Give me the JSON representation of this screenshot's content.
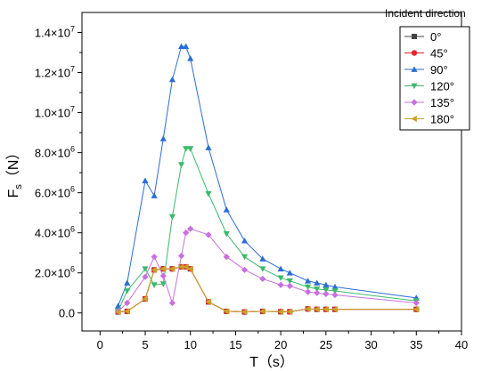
{
  "chart_data": {
    "type": "line",
    "xlabel_main": "T",
    "xlabel_unit": "（s）",
    "ylabel_main": "F",
    "ylabel_sub": "s",
    "ylabel_unit": "（N）",
    "legend_title": "Incident  direction",
    "legend_placement": "top-right",
    "grid": false,
    "xlim": [
      -2,
      40
    ],
    "ylim": [
      -900000.0,
      15000000.0
    ],
    "x_ticks": [
      0,
      5,
      10,
      15,
      20,
      25,
      30,
      35,
      40
    ],
    "x_tick_labels": [
      "0",
      "5",
      "10",
      "15",
      "20",
      "25",
      "30",
      "35",
      "40"
    ],
    "y_ticks": [
      0,
      2000000,
      4000000,
      6000000,
      8000000,
      10000000,
      12000000,
      14000000
    ],
    "y_tick_labels": [
      {
        "base": "0.0",
        "exp": ""
      },
      {
        "base": "2.0×10",
        "exp": "6"
      },
      {
        "base": "4.0×10",
        "exp": "6"
      },
      {
        "base": "6.0×10",
        "exp": "6"
      },
      {
        "base": "8.0×10",
        "exp": "6"
      },
      {
        "base": "1.0×10",
        "exp": "7"
      },
      {
        "base": "1.2×10",
        "exp": "7"
      },
      {
        "base": "1.4×10",
        "exp": "7"
      }
    ],
    "series": [
      {
        "name": "0°",
        "color": "#444444",
        "marker": "square",
        "x": [
          2,
          3,
          5,
          6,
          7,
          8,
          9,
          9.5,
          10,
          12,
          14,
          16,
          18,
          20,
          21,
          23,
          24,
          25,
          26,
          35
        ],
        "y": [
          50000.0,
          80000.0,
          700000.0,
          2150000.0,
          2200000.0,
          2200000.0,
          2300000.0,
          2300000.0,
          2200000.0,
          550000.0,
          80000.0,
          50000.0,
          80000.0,
          60000.0,
          60000.0,
          200000.0,
          180000.0,
          180000.0,
          180000.0,
          180000.0
        ]
      },
      {
        "name": "45°",
        "color": "#e8242a",
        "marker": "circle",
        "x": [
          2,
          3,
          5,
          6,
          7,
          8,
          9,
          9.5,
          10,
          12,
          14,
          16,
          18,
          20,
          21,
          23,
          24,
          25,
          26,
          35
        ],
        "y": [
          50000.0,
          80000.0,
          700000.0,
          2150000.0,
          2200000.0,
          2200000.0,
          2300000.0,
          2300000.0,
          2200000.0,
          550000.0,
          80000.0,
          50000.0,
          80000.0,
          60000.0,
          60000.0,
          200000.0,
          180000.0,
          180000.0,
          180000.0,
          180000.0
        ]
      },
      {
        "name": "90°",
        "color": "#2b6dd6",
        "marker": "triangle-up",
        "x": [
          2,
          3,
          5,
          6,
          7,
          8,
          9,
          9.5,
          10,
          12,
          14,
          16,
          18,
          20,
          21,
          23,
          24,
          25,
          26,
          35
        ],
        "y": [
          350000.0,
          1500000.0,
          6600000.0,
          5850000.0,
          8700000.0,
          11650000.0,
          13300000.0,
          13300000.0,
          12700000.0,
          8250000.0,
          5150000.0,
          3600000.0,
          2700000.0,
          2200000.0,
          2000000.0,
          1600000.0,
          1500000.0,
          1400000.0,
          1300000.0,
          750000.0
        ]
      },
      {
        "name": "120°",
        "color": "#3cb96a",
        "marker": "triangle-down",
        "x": [
          2,
          3,
          5,
          6,
          7,
          8,
          9,
          9.5,
          10,
          12,
          14,
          16,
          18,
          20,
          21,
          23,
          24,
          25,
          26,
          35
        ],
        "y": [
          100000.0,
          1100000.0,
          2200000.0,
          1400000.0,
          1450000.0,
          4800000.0,
          7400000.0,
          8200000.0,
          8200000.0,
          5950000.0,
          3950000.0,
          2800000.0,
          2200000.0,
          1750000.0,
          1600000.0,
          1300000.0,
          1200000.0,
          1150000.0,
          1100000.0,
          600000.0
        ]
      },
      {
        "name": "135°",
        "color": "#c86fe0",
        "marker": "diamond",
        "x": [
          2,
          3,
          5,
          6,
          7,
          8,
          9,
          9.5,
          10,
          12,
          14,
          16,
          18,
          20,
          21,
          23,
          24,
          25,
          26,
          35
        ],
        "y": [
          80000.0,
          500000.0,
          1800000.0,
          2800000.0,
          1850000.0,
          500000.0,
          2850000.0,
          4000000.0,
          4200000.0,
          3900000.0,
          2800000.0,
          2150000.0,
          1700000.0,
          1400000.0,
          1350000.0,
          1050000.0,
          1000000.0,
          950000.0,
          900000.0,
          500000.0
        ]
      },
      {
        "name": "180°",
        "color": "#c9a227",
        "marker": "triangle-left",
        "x": [
          2,
          3,
          5,
          6,
          7,
          8,
          9,
          9.5,
          10,
          12,
          14,
          16,
          18,
          20,
          21,
          23,
          24,
          25,
          26,
          35
        ],
        "y": [
          50000.0,
          80000.0,
          700000.0,
          2150000.0,
          2200000.0,
          2200000.0,
          2300000.0,
          2300000.0,
          2200000.0,
          550000.0,
          80000.0,
          50000.0,
          80000.0,
          60000.0,
          60000.0,
          200000.0,
          180000.0,
          180000.0,
          180000.0,
          180000.0
        ]
      }
    ]
  }
}
